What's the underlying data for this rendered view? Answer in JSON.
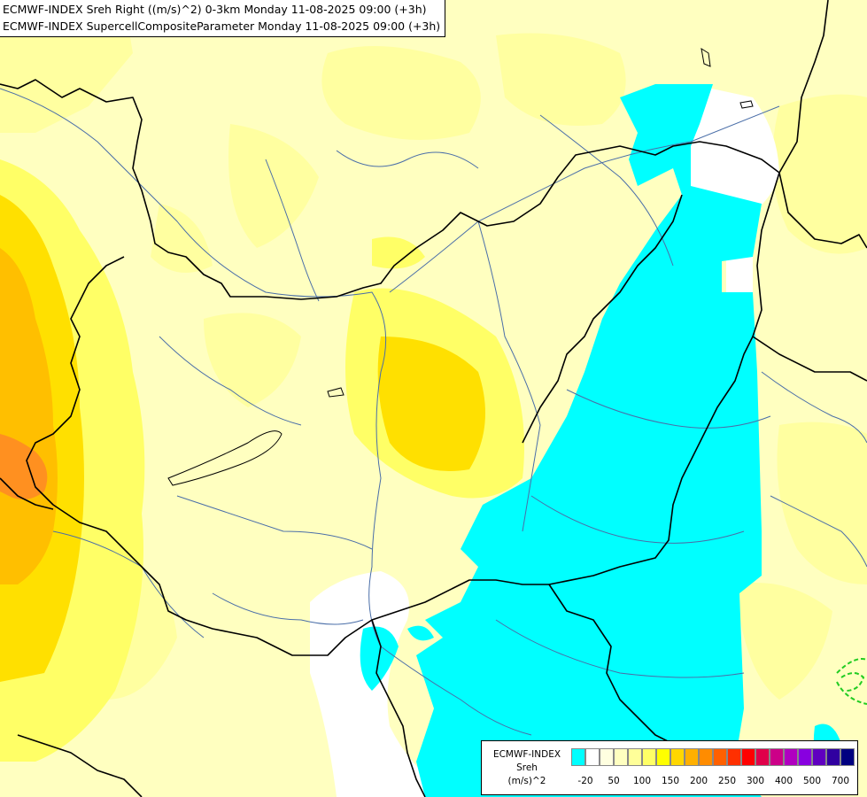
{
  "header": {
    "line1": "ECMWF-INDEX Sreh Right ((m/s)^2) 0-3km Monday 11-08-2025 09:00 (+3h)",
    "line2": "ECMWF-INDEX SupercellCompositeParameter Monday 11-08-2025 09:00 (+3h)"
  },
  "legend": {
    "line1": "ECMWF-INDEX",
    "line2": "Sreh",
    "line3": "(m/s)^2",
    "colors": [
      "#00ffff",
      "#ffffff",
      "#ffffe0",
      "#ffffc0",
      "#ffff99",
      "#ffff66",
      "#ffff00",
      "#ffd700",
      "#ffb000",
      "#ff8c00",
      "#ff6000",
      "#ff3000",
      "#ff0000",
      "#e0004a",
      "#cc0088",
      "#b000c0",
      "#8800e0",
      "#6000c0",
      "#3000a0",
      "#000080"
    ],
    "ticks": [
      "-20",
      "50",
      "100",
      "150",
      "200",
      "250",
      "300",
      "400",
      "500",
      "700"
    ]
  },
  "map": {
    "field_colors": {
      "base": "#ffffc0",
      "light": "#ffffa0",
      "yellow": "#ffff66",
      "strong": "#ffe000",
      "orange": "#ffbf00",
      "hot": "#ff9020",
      "cyan": "#00ffff",
      "white": "#ffffff"
    },
    "border_color": "#000000",
    "river_color": "#4a6ea8",
    "scp_contour_color": "#22cc22"
  }
}
